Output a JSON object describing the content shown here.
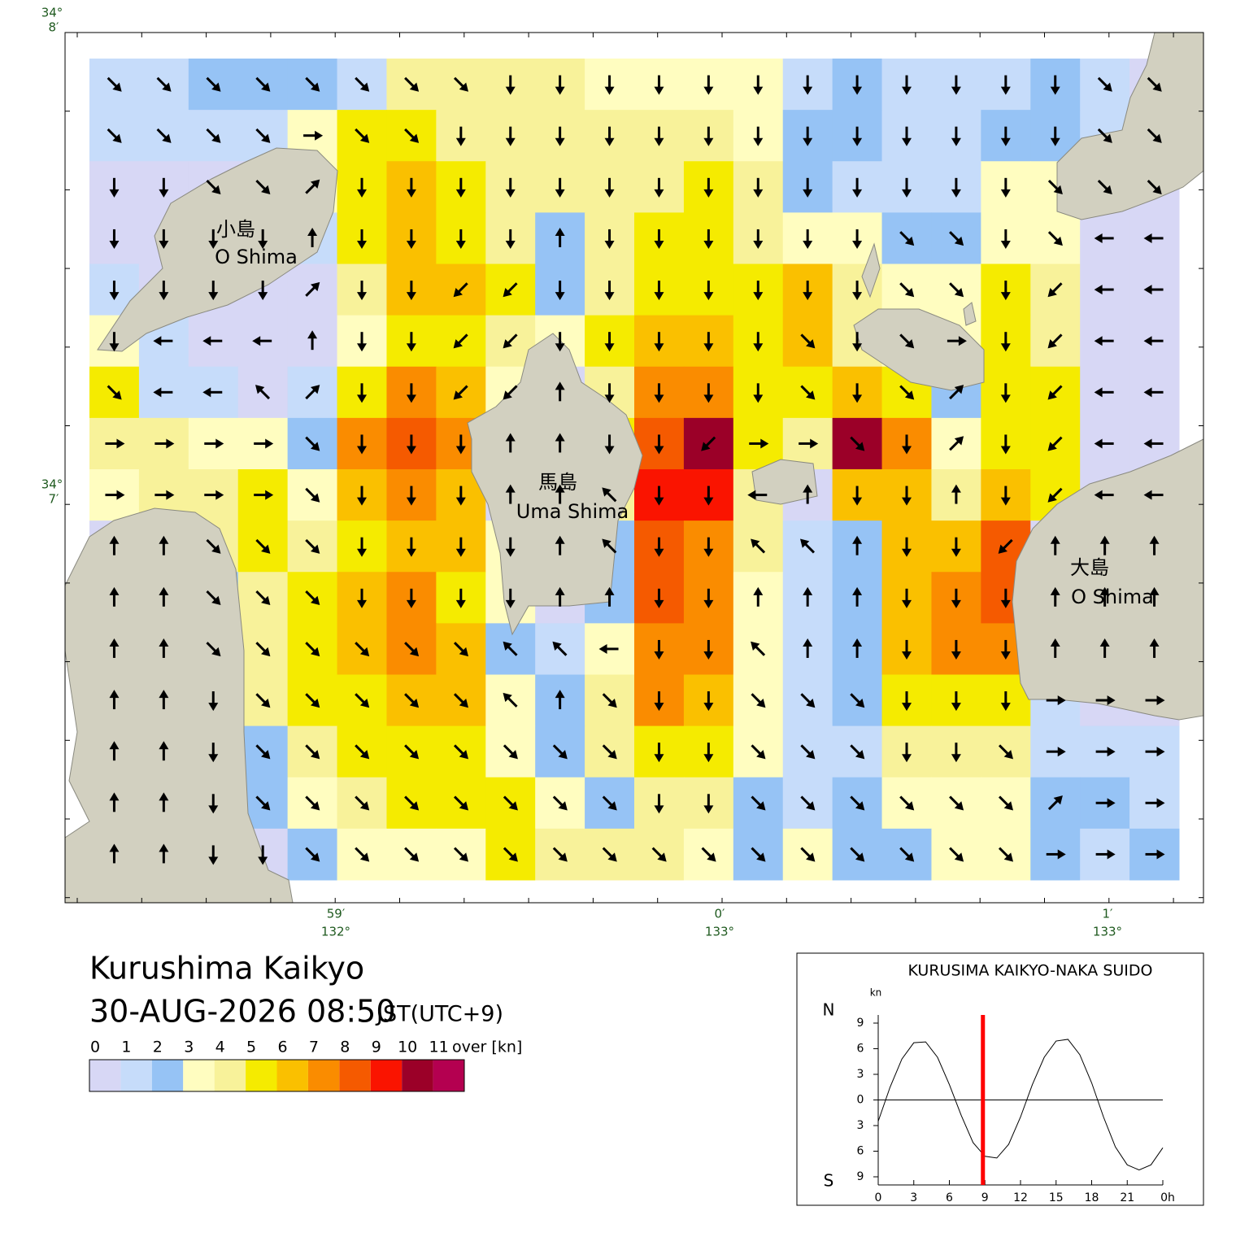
{
  "map": {
    "lat_labels": [
      {
        "deg": "34°",
        "min": "8′"
      },
      {
        "deg": "34°",
        "min": "7′"
      }
    ],
    "lon_labels": [
      {
        "min": "59′",
        "deg": "132°"
      },
      {
        "min": "0′",
        "deg": "133°"
      },
      {
        "min": "1′",
        "deg": "133°"
      }
    ],
    "place_labels": [
      "小島",
      "O Shima",
      "馬島",
      "Uma Shima",
      "大島",
      "O Shima"
    ],
    "current_field": {
      "speed": [
        [
          1,
          1,
          2,
          2,
          2,
          1,
          4,
          4,
          4,
          4,
          3,
          3,
          3,
          3,
          1,
          2,
          1,
          1,
          1,
          2,
          1,
          0
        ],
        [
          1,
          1,
          1,
          1,
          3,
          5,
          5,
          4,
          4,
          4,
          4,
          4,
          4,
          3,
          2,
          2,
          1,
          1,
          2,
          2,
          1,
          0
        ],
        [
          0,
          0,
          0,
          0,
          3,
          5,
          6,
          5,
          4,
          4,
          4,
          4,
          5,
          4,
          2,
          1,
          1,
          1,
          3,
          3,
          0,
          0
        ],
        [
          0,
          0,
          0,
          0,
          1,
          5,
          6,
          5,
          4,
          2,
          4,
          5,
          5,
          4,
          3,
          3,
          2,
          2,
          3,
          3,
          0,
          0
        ],
        [
          1,
          0,
          0,
          0,
          0,
          4,
          6,
          6,
          5,
          2,
          4,
          5,
          5,
          5,
          6,
          4,
          3,
          3,
          5,
          4,
          0,
          0
        ],
        [
          3,
          1,
          0,
          0,
          0,
          3,
          5,
          5,
          4,
          3,
          5,
          6,
          6,
          5,
          6,
          4,
          3,
          3,
          5,
          4,
          0,
          0
        ],
        [
          5,
          1,
          1,
          0,
          1,
          5,
          7,
          6,
          3,
          0,
          4,
          7,
          7,
          5,
          5,
          6,
          5,
          2,
          5,
          5,
          0,
          0
        ],
        [
          4,
          4,
          3,
          3,
          2,
          7,
          8,
          7,
          0,
          0,
          5,
          8,
          10,
          5,
          4,
          10,
          7,
          3,
          5,
          5,
          0,
          0
        ],
        [
          3,
          4,
          4,
          5,
          3,
          6,
          7,
          6,
          0,
          0,
          4,
          9,
          9,
          4,
          0,
          6,
          6,
          4,
          6,
          5,
          0,
          0
        ],
        [
          0,
          0,
          4,
          5,
          4,
          5,
          6,
          6,
          3,
          0,
          2,
          8,
          7,
          4,
          1,
          2,
          6,
          6,
          8,
          0,
          0,
          0
        ],
        [
          0,
          0,
          2,
          4,
          5,
          6,
          7,
          5,
          3,
          0,
          2,
          8,
          7,
          3,
          1,
          2,
          6,
          7,
          8,
          0,
          0,
          0
        ],
        [
          0,
          0,
          2,
          4,
          5,
          6,
          7,
          6,
          2,
          1,
          3,
          7,
          7,
          3,
          1,
          2,
          6,
          7,
          7,
          0,
          0,
          0
        ],
        [
          0,
          0,
          3,
          4,
          5,
          5,
          6,
          6,
          3,
          2,
          4,
          7,
          6,
          3,
          1,
          2,
          5,
          5,
          5,
          1,
          0,
          0
        ],
        [
          0,
          0,
          1,
          2,
          4,
          5,
          5,
          5,
          3,
          2,
          4,
          5,
          5,
          3,
          1,
          1,
          4,
          4,
          4,
          1,
          1,
          1
        ],
        [
          0,
          0,
          0,
          2,
          3,
          4,
          5,
          5,
          5,
          3,
          2,
          4,
          4,
          2,
          1,
          2,
          3,
          3,
          3,
          2,
          2,
          1
        ],
        [
          0,
          0,
          0,
          0,
          2,
          3,
          3,
          3,
          5,
          4,
          4,
          4,
          3,
          2,
          3,
          2,
          2,
          3,
          3,
          2,
          1,
          2
        ]
      ],
      "direction": [
        [
          135,
          135,
          135,
          135,
          135,
          135,
          135,
          135,
          180,
          180,
          180,
          180,
          180,
          180,
          180,
          180,
          180,
          180,
          180,
          180,
          135,
          135
        ],
        [
          135,
          135,
          135,
          135,
          90,
          135,
          135,
          180,
          180,
          180,
          180,
          180,
          180,
          180,
          180,
          180,
          180,
          180,
          180,
          180,
          135,
          135
        ],
        [
          180,
          180,
          135,
          135,
          45,
          180,
          180,
          180,
          180,
          180,
          180,
          180,
          180,
          180,
          180,
          180,
          180,
          180,
          180,
          135,
          135,
          135
        ],
        [
          180,
          180,
          180,
          180,
          0,
          180,
          180,
          180,
          180,
          0,
          180,
          180,
          180,
          180,
          180,
          180,
          135,
          135,
          180,
          135,
          270,
          270
        ],
        [
          180,
          180,
          180,
          180,
          45,
          180,
          180,
          225,
          225,
          180,
          180,
          180,
          180,
          180,
          180,
          180,
          135,
          135,
          180,
          225,
          270,
          270
        ],
        [
          180,
          270,
          270,
          270,
          0,
          180,
          180,
          225,
          225,
          180,
          180,
          180,
          180,
          180,
          135,
          180,
          135,
          90,
          180,
          225,
          270,
          270
        ],
        [
          135,
          270,
          270,
          315,
          45,
          180,
          180,
          225,
          225,
          0,
          180,
          180,
          180,
          180,
          135,
          180,
          135,
          45,
          180,
          225,
          270,
          270
        ],
        [
          90,
          90,
          90,
          90,
          135,
          180,
          180,
          180,
          0,
          0,
          180,
          180,
          225,
          90,
          90,
          135,
          180,
          45,
          180,
          225,
          270,
          270
        ],
        [
          90,
          90,
          90,
          90,
          135,
          180,
          180,
          180,
          0,
          0,
          315,
          180,
          180,
          270,
          0,
          180,
          180,
          0,
          180,
          225,
          270,
          270
        ],
        [
          0,
          0,
          135,
          135,
          135,
          180,
          180,
          180,
          180,
          0,
          315,
          180,
          180,
          315,
          315,
          0,
          180,
          180,
          225,
          0,
          0,
          0
        ],
        [
          0,
          0,
          135,
          135,
          135,
          180,
          180,
          180,
          180,
          0,
          0,
          180,
          180,
          0,
          0,
          0,
          180,
          180,
          180,
          0,
          0,
          0
        ],
        [
          0,
          0,
          135,
          135,
          135,
          135,
          135,
          135,
          315,
          315,
          270,
          180,
          180,
          315,
          0,
          0,
          180,
          180,
          180,
          0,
          0,
          0
        ],
        [
          0,
          0,
          180,
          135,
          135,
          135,
          135,
          135,
          315,
          0,
          135,
          180,
          180,
          135,
          135,
          135,
          180,
          180,
          180,
          90,
          90,
          90
        ],
        [
          0,
          0,
          180,
          135,
          135,
          135,
          135,
          135,
          135,
          135,
          135,
          180,
          180,
          135,
          135,
          135,
          180,
          180,
          135,
          90,
          90,
          90
        ],
        [
          0,
          0,
          180,
          135,
          135,
          135,
          135,
          135,
          135,
          135,
          135,
          180,
          180,
          135,
          135,
          135,
          135,
          135,
          135,
          45,
          90,
          90
        ],
        [
          0,
          0,
          180,
          180,
          135,
          135,
          135,
          135,
          135,
          135,
          135,
          135,
          135,
          135,
          135,
          135,
          135,
          135,
          135,
          90,
          90,
          90
        ]
      ]
    }
  },
  "title": "Kurushima Kaikyo",
  "datetime": "30-AUG-2026 08:50",
  "timezone": "JST(UTC+9)",
  "legend": {
    "levels": [
      0,
      1,
      2,
      3,
      4,
      5,
      6,
      7,
      8,
      9,
      10,
      11
    ],
    "unit": "over [kn]",
    "colors": [
      "#d7d7f5",
      "#c6dcfa",
      "#96c3f5",
      "#fffdc0",
      "#f8f29a",
      "#f5eb00",
      "#fac000",
      "#fa8c00",
      "#f55a00",
      "#fa1400",
      "#9b0028",
      "#b40050"
    ]
  },
  "inset": {
    "title": "KURUSIMA KAIKYO-NAKA SUIDO",
    "unit": "kn",
    "north": "N",
    "south": "S",
    "xlim": [
      0,
      24
    ],
    "ylim": [
      -9,
      9
    ],
    "xticks": [
      0,
      3,
      6,
      9,
      12,
      15,
      18,
      21,
      {
        "value": 24,
        "label": "0h"
      }
    ],
    "yticks": [
      9,
      6,
      3,
      0,
      {
        "value": -3,
        "label": "3"
      },
      {
        "value": -6,
        "label": "6"
      },
      {
        "value": -9,
        "label": "9"
      }
    ],
    "hours": [
      0,
      1,
      2,
      3,
      4,
      5,
      6,
      7,
      8,
      9,
      10,
      11,
      12,
      13,
      14,
      15,
      16,
      17,
      18,
      19,
      20,
      21,
      22,
      23,
      24
    ],
    "values": [
      -2.5,
      1.5,
      4.8,
      6.7,
      6.8,
      5.0,
      1.8,
      -1.8,
      -5.0,
      -6.6,
      -6.8,
      -5.2,
      -2.0,
      1.8,
      5.0,
      6.9,
      7.1,
      5.3,
      2.0,
      -2.0,
      -5.5,
      -7.6,
      -8.2,
      -7.6,
      -5.6
    ],
    "current_hour": 8.83,
    "line_color": "#000000",
    "marker_color": "#ff0000"
  }
}
